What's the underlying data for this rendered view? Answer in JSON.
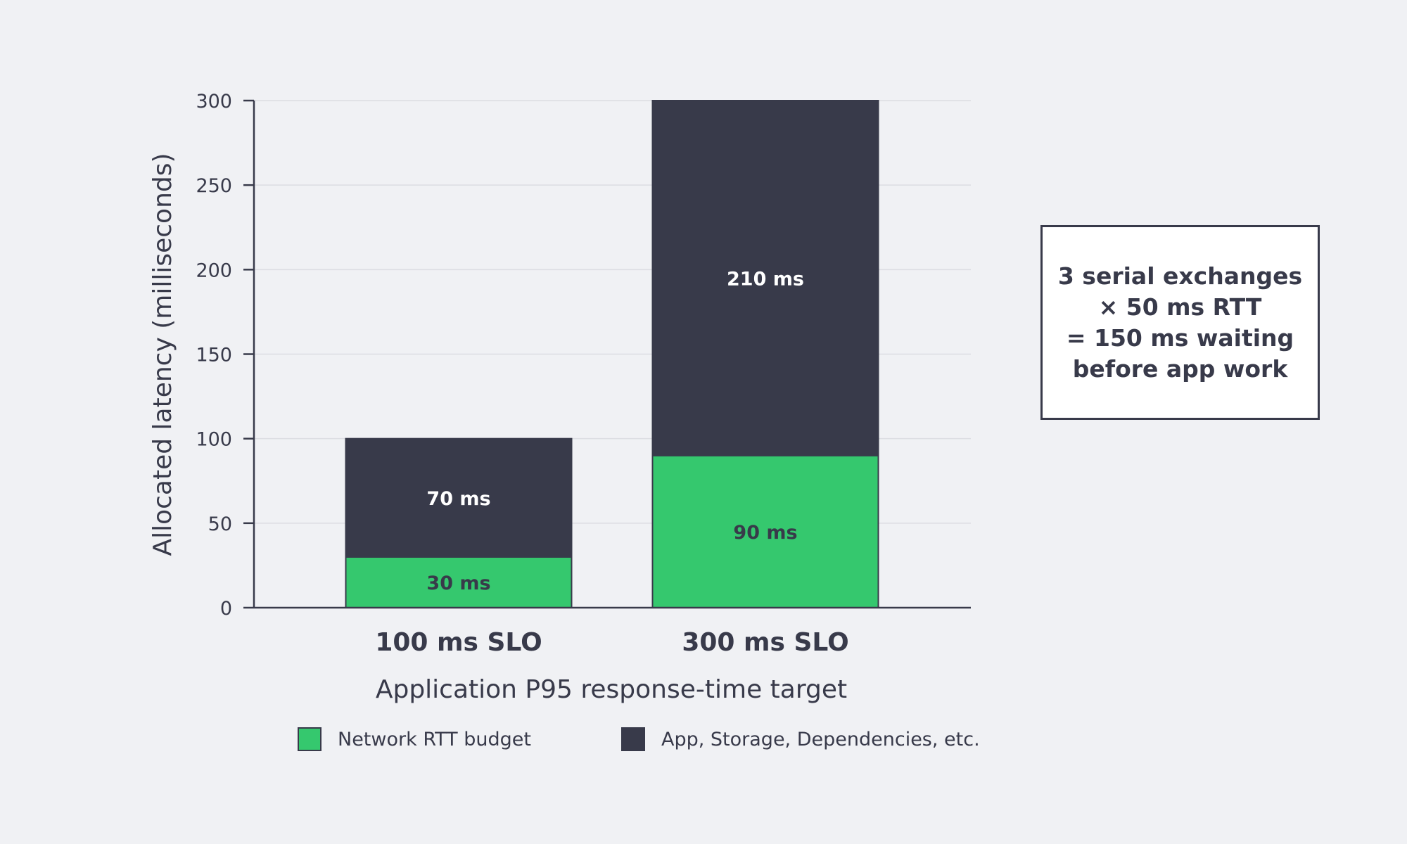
{
  "chart_data": {
    "type": "bar",
    "stacked": true,
    "categories": [
      "100 ms SLO",
      "300 ms SLO"
    ],
    "series": [
      {
        "name": "Network RTT budget",
        "values": [
          30,
          90
        ],
        "labels": [
          "30 ms",
          "90 ms"
        ],
        "color": "#35c86e",
        "label_color": "#383a4a"
      },
      {
        "name": "App, Storage, Dependencies, etc.",
        "values": [
          70,
          210
        ],
        "labels": [
          "70 ms",
          "210 ms"
        ],
        "color": "#383a4a",
        "label_color": "#ffffff"
      }
    ],
    "xlabel": "Application P95 response-time target",
    "ylabel": "Allocated latency (milliseconds)",
    "ylim": [
      0,
      300
    ],
    "yticks": [
      0,
      50,
      100,
      150,
      200,
      250,
      300
    ],
    "grid": true,
    "legend_position": "bottom",
    "annotation": "3 serial exchanges\n× 50 ms RTT\n= 150 ms waiting\nbefore app work"
  }
}
